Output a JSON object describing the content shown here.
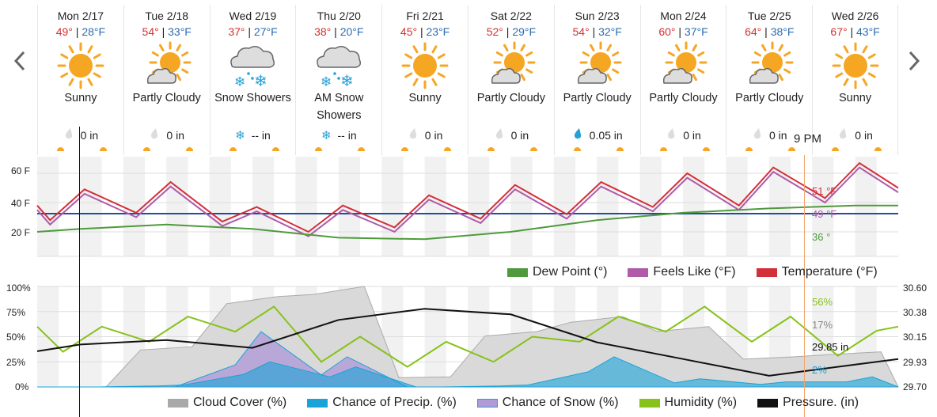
{
  "nav": {
    "prev_icon": "chevron-left-icon",
    "next_icon": "chevron-right-icon"
  },
  "days": [
    {
      "label": "Mon 2/17",
      "hi": "49°",
      "lo": "28°F",
      "icon": "sunny",
      "condition": "Sunny",
      "precip_icon": "drop-grey",
      "precip": "0 in"
    },
    {
      "label": "Tue 2/18",
      "hi": "54°",
      "lo": "33°F",
      "icon": "partly-cloudy",
      "condition": "Partly Cloudy",
      "precip_icon": "drop-grey",
      "precip": "0 in"
    },
    {
      "label": "Wed 2/19",
      "hi": "37°",
      "lo": "27°F",
      "icon": "snow",
      "condition": "Snow Showers",
      "precip_icon": "snowflake",
      "precip": "-- in"
    },
    {
      "label": "Thu 2/20",
      "hi": "38°",
      "lo": "20°F",
      "icon": "snow",
      "condition": "AM Snow Showers",
      "precip_icon": "snowflake",
      "precip": "-- in"
    },
    {
      "label": "Fri 2/21",
      "hi": "45°",
      "lo": "23°F",
      "icon": "sunny",
      "condition": "Sunny",
      "precip_icon": "drop-grey",
      "precip": "0 in"
    },
    {
      "label": "Sat 2/22",
      "hi": "52°",
      "lo": "29°F",
      "icon": "partly-cloudy",
      "condition": "Partly Cloudy",
      "precip_icon": "drop-grey",
      "precip": "0 in"
    },
    {
      "label": "Sun 2/23",
      "hi": "54°",
      "lo": "32°F",
      "icon": "partly-cloudy",
      "condition": "Partly Cloudy",
      "precip_icon": "drop-blue",
      "precip": "0.05 in"
    },
    {
      "label": "Mon 2/24",
      "hi": "60°",
      "lo": "37°F",
      "icon": "partly-cloudy",
      "condition": "Partly Cloudy",
      "precip_icon": "drop-grey",
      "precip": "0 in"
    },
    {
      "label": "Tue 2/25",
      "hi": "64°",
      "lo": "38°F",
      "icon": "partly-cloudy",
      "condition": "Partly Cloudy",
      "precip_icon": "drop-grey",
      "precip": "0 in"
    },
    {
      "label": "Wed 2/26",
      "hi": "67°",
      "lo": "43°F",
      "icon": "sunny",
      "condition": "Sunny",
      "precip_icon": "drop-grey",
      "precip": "0 in"
    }
  ],
  "temps_sep": " | ",
  "cursor_time": "9 PM",
  "temp_chart": {
    "y_ticks": [
      "60 F",
      "40 F",
      "20 F"
    ],
    "tooltip": {
      "temperature": "51 °F",
      "feels_like": "49 °F",
      "dew_point": "36 °"
    },
    "legend": [
      {
        "name": "Dew Point (°)",
        "color": "#4f9a3c"
      },
      {
        "name": "Feels Like (°F)",
        "color": "#b05aaa"
      },
      {
        "name": "Temperature (°F)",
        "color": "#d32f3a"
      }
    ],
    "freezing_line_color": "#1f4e9e"
  },
  "atmos_chart": {
    "y_left_ticks": [
      "100%",
      "75%",
      "50%",
      "25%",
      "0%"
    ],
    "y_right_ticks": [
      "30.60",
      "30.38",
      "30.15",
      "29.93",
      "29.70"
    ],
    "tooltip": {
      "humidity": "56%",
      "cloud": "17%",
      "pressure": "29.85 in",
      "precip": "2%"
    },
    "legend": [
      {
        "name": "Cloud Cover (%)",
        "color": "#a9a9a9"
      },
      {
        "name": "Chance of Precip. (%)",
        "color": "#1aa3d9"
      },
      {
        "name": "Chance of Snow (%)",
        "color": "#b09bd6"
      },
      {
        "name": "Humidity (%)",
        "color": "#86c21a"
      },
      {
        "name": "Pressure. (in)",
        "color": "#111111"
      }
    ]
  },
  "colors": {
    "sun": "#f5a623",
    "hi": "#d3302f",
    "lo": "#2b6cb0",
    "cursor": "#f4a46b"
  }
}
